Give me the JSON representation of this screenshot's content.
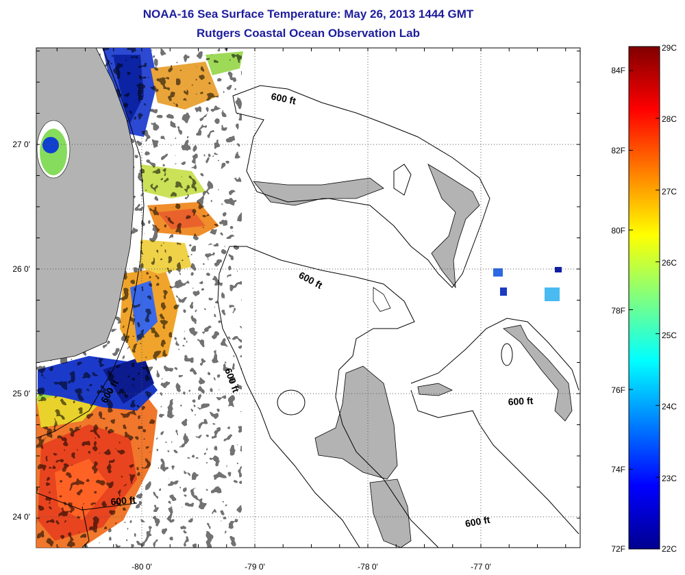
{
  "header": {
    "title": "NOAA-16 Sea Surface Temperature:  May 26, 2013 1444 GMT",
    "subtitle": "Rutgers Coastal Ocean Observation Lab"
  },
  "map": {
    "lon_ticks": [
      "-80 0'",
      "-79 0'",
      "-78 0'",
      "-77 0'"
    ],
    "lat_ticks": [
      "27 0'",
      "26 0'",
      "25 0'",
      "24 0'"
    ],
    "contour_label": "600 ft",
    "land_color": "#b3b3b3"
  },
  "colorbar": {
    "celsius": [
      "29C",
      "28C",
      "27C",
      "26C",
      "25C",
      "24C",
      "23C",
      "22C"
    ],
    "fahrenheit": [
      "84F",
      "82F",
      "80F",
      "78F",
      "76F",
      "74F",
      "72F"
    ],
    "colors": [
      "#00008f",
      "#0000ff",
      "#00ffff",
      "#ffff00",
      "#ff0000",
      "#800000"
    ]
  }
}
